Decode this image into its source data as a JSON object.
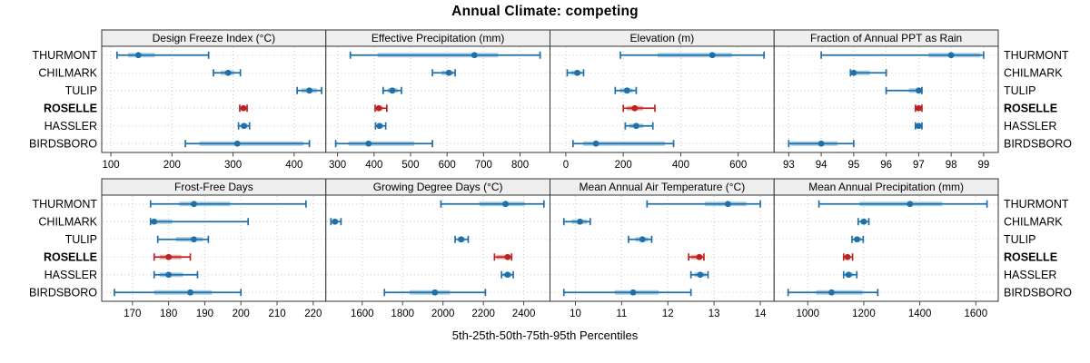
{
  "title": "Annual Climate: competing",
  "xlabel": "5th-25th-50th-75th-95th Percentiles",
  "sites": [
    "THURMONT",
    "CHILMARK",
    "TULIP",
    "ROSELLE",
    "HASSLER",
    "BIRDSBORO"
  ],
  "highlight_site": "ROSELLE",
  "colors": {
    "series_blue_dark": "#1f6fa8",
    "series_blue_light": "#a9cee3",
    "series_red_dark": "#bb2323",
    "series_red_light": "#e8a9a4",
    "grid": "#c9c9c9",
    "strip_fill": "#eeeeee",
    "border": "#333333",
    "text": "#000000"
  },
  "chart_data": {
    "type": "dotplot-trellis",
    "title": "Annual Climate: competing",
    "xlabel": "5th-25th-50th-75th-95th Percentiles",
    "legend_note": "values per site are [p5, p25, p50, p75, p95]; median dot, IQR band, 5th-95th whiskers",
    "rows": [
      "THURMONT",
      "CHILMARK",
      "TULIP",
      "ROSELLE",
      "HASSLER",
      "BIRDSBORO"
    ],
    "panels": [
      {
        "title": "Design Freeze Index (°C)",
        "domain": [
          85,
          452
        ],
        "ticks": [
          100,
          200,
          300,
          400
        ],
        "values": {
          "THURMONT": [
            110,
            128,
            145,
            172,
            260
          ],
          "CHILMARK": [
            268,
            280,
            292,
            302,
            312
          ],
          "TULIP": [
            405,
            412,
            425,
            437,
            445
          ],
          "ROSELLE": [
            311,
            313,
            317,
            321,
            323
          ],
          "HASSLER": [
            309,
            312,
            318,
            324,
            327
          ],
          "BIRDSBORO": [
            222,
            245,
            307,
            415,
            425
          ]
        }
      },
      {
        "title": "Effective Precipitation (mm)",
        "domain": [
          268,
          882
        ],
        "ticks": [
          300,
          400,
          500,
          600,
          700,
          800
        ],
        "values": {
          "THURMONT": [
            335,
            410,
            675,
            740,
            855
          ],
          "CHILMARK": [
            560,
            585,
            605,
            617,
            622
          ],
          "TULIP": [
            425,
            437,
            450,
            465,
            475
          ],
          "ROSELLE": [
            403,
            406,
            413,
            424,
            435
          ],
          "HASSLER": [
            404,
            407,
            415,
            425,
            432
          ],
          "BIRDSBORO": [
            295,
            330,
            385,
            510,
            560
          ]
        }
      },
      {
        "title": "Elevation (m)",
        "domain": [
          -55,
          725
        ],
        "ticks": [
          0,
          200,
          400,
          600
        ],
        "values": {
          "THURMONT": [
            190,
            320,
            510,
            578,
            690
          ],
          "CHILMARK": [
            5,
            18,
            40,
            52,
            62
          ],
          "TULIP": [
            172,
            188,
            213,
            233,
            245
          ],
          "ROSELLE": [
            200,
            213,
            240,
            268,
            310
          ],
          "HASSLER": [
            207,
            220,
            245,
            270,
            303
          ],
          "BIRDSBORO": [
            25,
            60,
            105,
            345,
            375
          ]
        }
      },
      {
        "title": "Fraction of Annual PPT as Rain",
        "domain": [
          92.55,
          99.45
        ],
        "ticks": [
          93,
          94,
          95,
          96,
          97,
          98,
          99
        ],
        "values": {
          "THURMONT": [
            94,
            97.3,
            98,
            98.9,
            99
          ],
          "CHILMARK": [
            94.9,
            94.95,
            95,
            95.5,
            96
          ],
          "TULIP": [
            96,
            96.7,
            97,
            97.05,
            97.1
          ],
          "ROSELLE": [
            96.9,
            96.95,
            97,
            97.05,
            97.1
          ],
          "HASSLER": [
            96.9,
            96.95,
            97,
            97.05,
            97.1
          ],
          "BIRDSBORO": [
            93,
            93.05,
            94,
            94.5,
            95
          ]
        }
      },
      {
        "title": "Frost-Free Days",
        "domain": [
          161.5,
          223.5
        ],
        "ticks": [
          170,
          180,
          190,
          200,
          210,
          220
        ],
        "values": {
          "THURMONT": [
            175,
            183,
            187,
            197,
            218
          ],
          "CHILMARK": [
            175,
            175.3,
            176,
            181,
            202
          ],
          "TULIP": [
            177,
            182,
            187,
            189.5,
            191
          ],
          "ROSELLE": [
            176,
            177.5,
            180,
            183.5,
            186
          ],
          "HASSLER": [
            176,
            177.5,
            180,
            184,
            188
          ],
          "BIRDSBORO": [
            165,
            176,
            186,
            192,
            200
          ]
        }
      },
      {
        "title": "Growing Degree Days (°C)",
        "domain": [
          1420,
          2530
        ],
        "ticks": [
          1600,
          1800,
          2000,
          2200,
          2400
        ],
        "values": {
          "THURMONT": [
            1990,
            2180,
            2310,
            2405,
            2500
          ],
          "CHILMARK": [
            1445,
            1450,
            1465,
            1480,
            1495
          ],
          "TULIP": [
            2060,
            2072,
            2090,
            2108,
            2125
          ],
          "ROSELLE": [
            2255,
            2265,
            2320,
            2335,
            2340
          ],
          "HASSLER": [
            2290,
            2300,
            2320,
            2338,
            2348
          ],
          "BIRDSBORO": [
            1710,
            1835,
            1960,
            2035,
            2210
          ]
        }
      },
      {
        "title": "Mean Annual Air Temperature (°C)",
        "domain": [
          9.45,
          14.3
        ],
        "ticks": [
          10,
          11,
          12,
          13,
          14
        ],
        "values": {
          "THURMONT": [
            11.55,
            12.8,
            13.3,
            13.7,
            14.0
          ],
          "CHILMARK": [
            9.75,
            9.92,
            10.1,
            10.25,
            10.32
          ],
          "TULIP": [
            11.15,
            11.3,
            11.45,
            11.57,
            11.65
          ],
          "ROSELLE": [
            12.45,
            12.5,
            12.68,
            12.75,
            12.78
          ],
          "HASSLER": [
            12.5,
            12.58,
            12.7,
            12.82,
            12.87
          ],
          "BIRDSBORO": [
            9.75,
            10.85,
            11.25,
            11.8,
            12.5
          ]
        }
      },
      {
        "title": "Mean Annual Precipitation (mm)",
        "domain": [
          880,
          1680
        ],
        "ticks": [
          1000,
          1200,
          1400,
          1600
        ],
        "values": {
          "THURMONT": [
            1040,
            1185,
            1365,
            1480,
            1640
          ],
          "CHILMARK": [
            1180,
            1188,
            1200,
            1210,
            1218
          ],
          "TULIP": [
            1158,
            1165,
            1176,
            1190,
            1198
          ],
          "ROSELLE": [
            1128,
            1132,
            1142,
            1152,
            1160
          ],
          "HASSLER": [
            1128,
            1134,
            1146,
            1162,
            1175
          ],
          "BIRDSBORO": [
            930,
            1030,
            1085,
            1195,
            1250
          ]
        }
      }
    ]
  }
}
